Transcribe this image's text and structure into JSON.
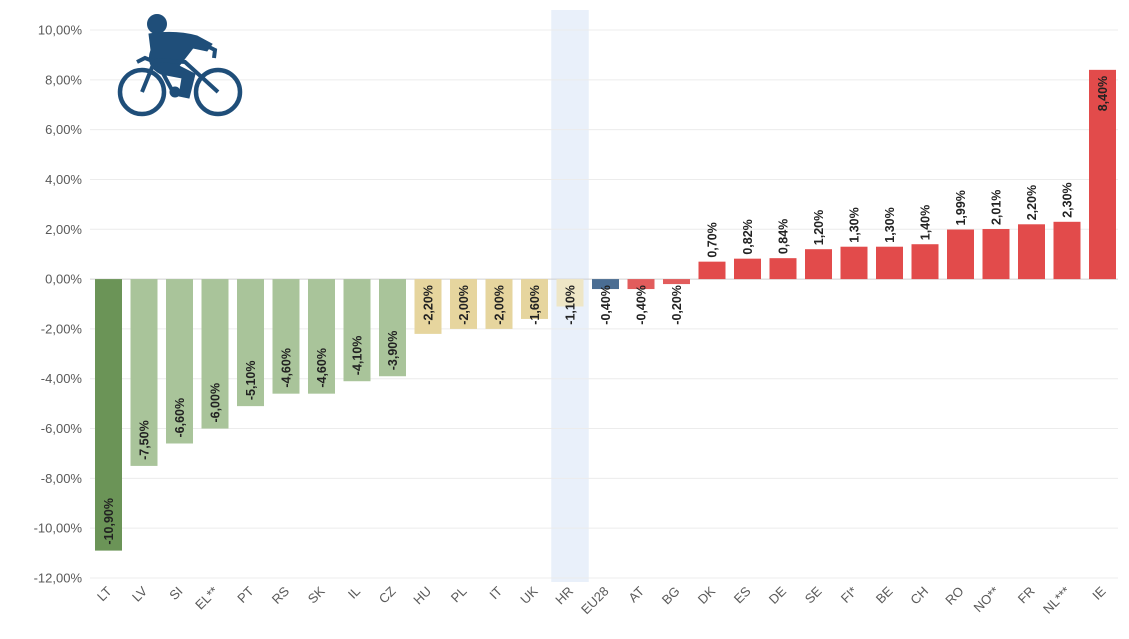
{
  "chart_data": {
    "type": "bar",
    "categories": [
      "LT",
      "LV",
      "SI",
      "EL**",
      "PT",
      "RS",
      "SK",
      "IL",
      "CZ",
      "HU",
      "PL",
      "IT",
      "UK",
      "HR",
      "EU28",
      "AT",
      "BG",
      "DK",
      "ES",
      "DE",
      "SE",
      "FI*",
      "BE",
      "CH",
      "RO",
      "NO**",
      "FR",
      "NL***",
      "IE"
    ],
    "values": [
      -10.9,
      -7.5,
      -6.6,
      -6.0,
      -5.1,
      -4.6,
      -4.6,
      -4.1,
      -3.9,
      -2.2,
      -2.0,
      -2.0,
      -1.6,
      -1.1,
      -0.4,
      -0.4,
      -0.2,
      0.7,
      0.82,
      0.84,
      1.2,
      1.3,
      1.3,
      1.4,
      1.99,
      2.01,
      2.2,
      2.3,
      8.4
    ],
    "data_labels": [
      "-10,90%",
      "-7,50%",
      "-6,60%",
      "-6,00%",
      "-5,10%",
      "-4,60%",
      "-4,60%",
      "-4,10%",
      "-3,90%",
      "-2,20%",
      "-2,00%",
      "-2,00%",
      "-1,60%",
      "-1,10%",
      "-0,40%",
      "-0,40%",
      "-0,20%",
      "0,70%",
      "0,82%",
      "0,84%",
      "1,20%",
      "1,30%",
      "1,30%",
      "1,40%",
      "1,99%",
      "2,01%",
      "2,20%",
      "2,30%",
      "8,40%"
    ],
    "bar_colors": [
      "#6b9457",
      "#a9c49a",
      "#a9c49a",
      "#a9c49a",
      "#a9c49a",
      "#a9c49a",
      "#a9c49a",
      "#a9c49a",
      "#a9c49a",
      "#e6d59e",
      "#e6d59e",
      "#e6d59e",
      "#e6d59e",
      "#eee6c6",
      "#4a6d93",
      "#e25c5c",
      "#e25c5c",
      "#e24b4b",
      "#e24b4b",
      "#e24b4b",
      "#e24b4b",
      "#e24b4b",
      "#e24b4b",
      "#e24b4b",
      "#e24b4b",
      "#e24b4b",
      "#e24b4b",
      "#e24b4b",
      "#e24b4b"
    ],
    "highlight_category": "HR",
    "highlight_color": "#e9f0fa",
    "ylim": [
      -12,
      10
    ],
    "yticks": [
      10,
      8,
      6,
      4,
      2,
      0,
      -2,
      -4,
      -6,
      -8,
      -10,
      -12
    ],
    "ytick_labels": [
      "10,00%",
      "8,00%",
      "6,00%",
      "4,00%",
      "2,00%",
      "0,00%",
      "-2,00%",
      "-4,00%",
      "-6,00%",
      "-8,00%",
      "-10,00%",
      "-12,00%"
    ],
    "grid": true,
    "legend": "none",
    "title": "",
    "xlabel": "",
    "ylabel": ""
  },
  "icon": {
    "name": "cyclist-icon",
    "color": "#1f4e79"
  }
}
